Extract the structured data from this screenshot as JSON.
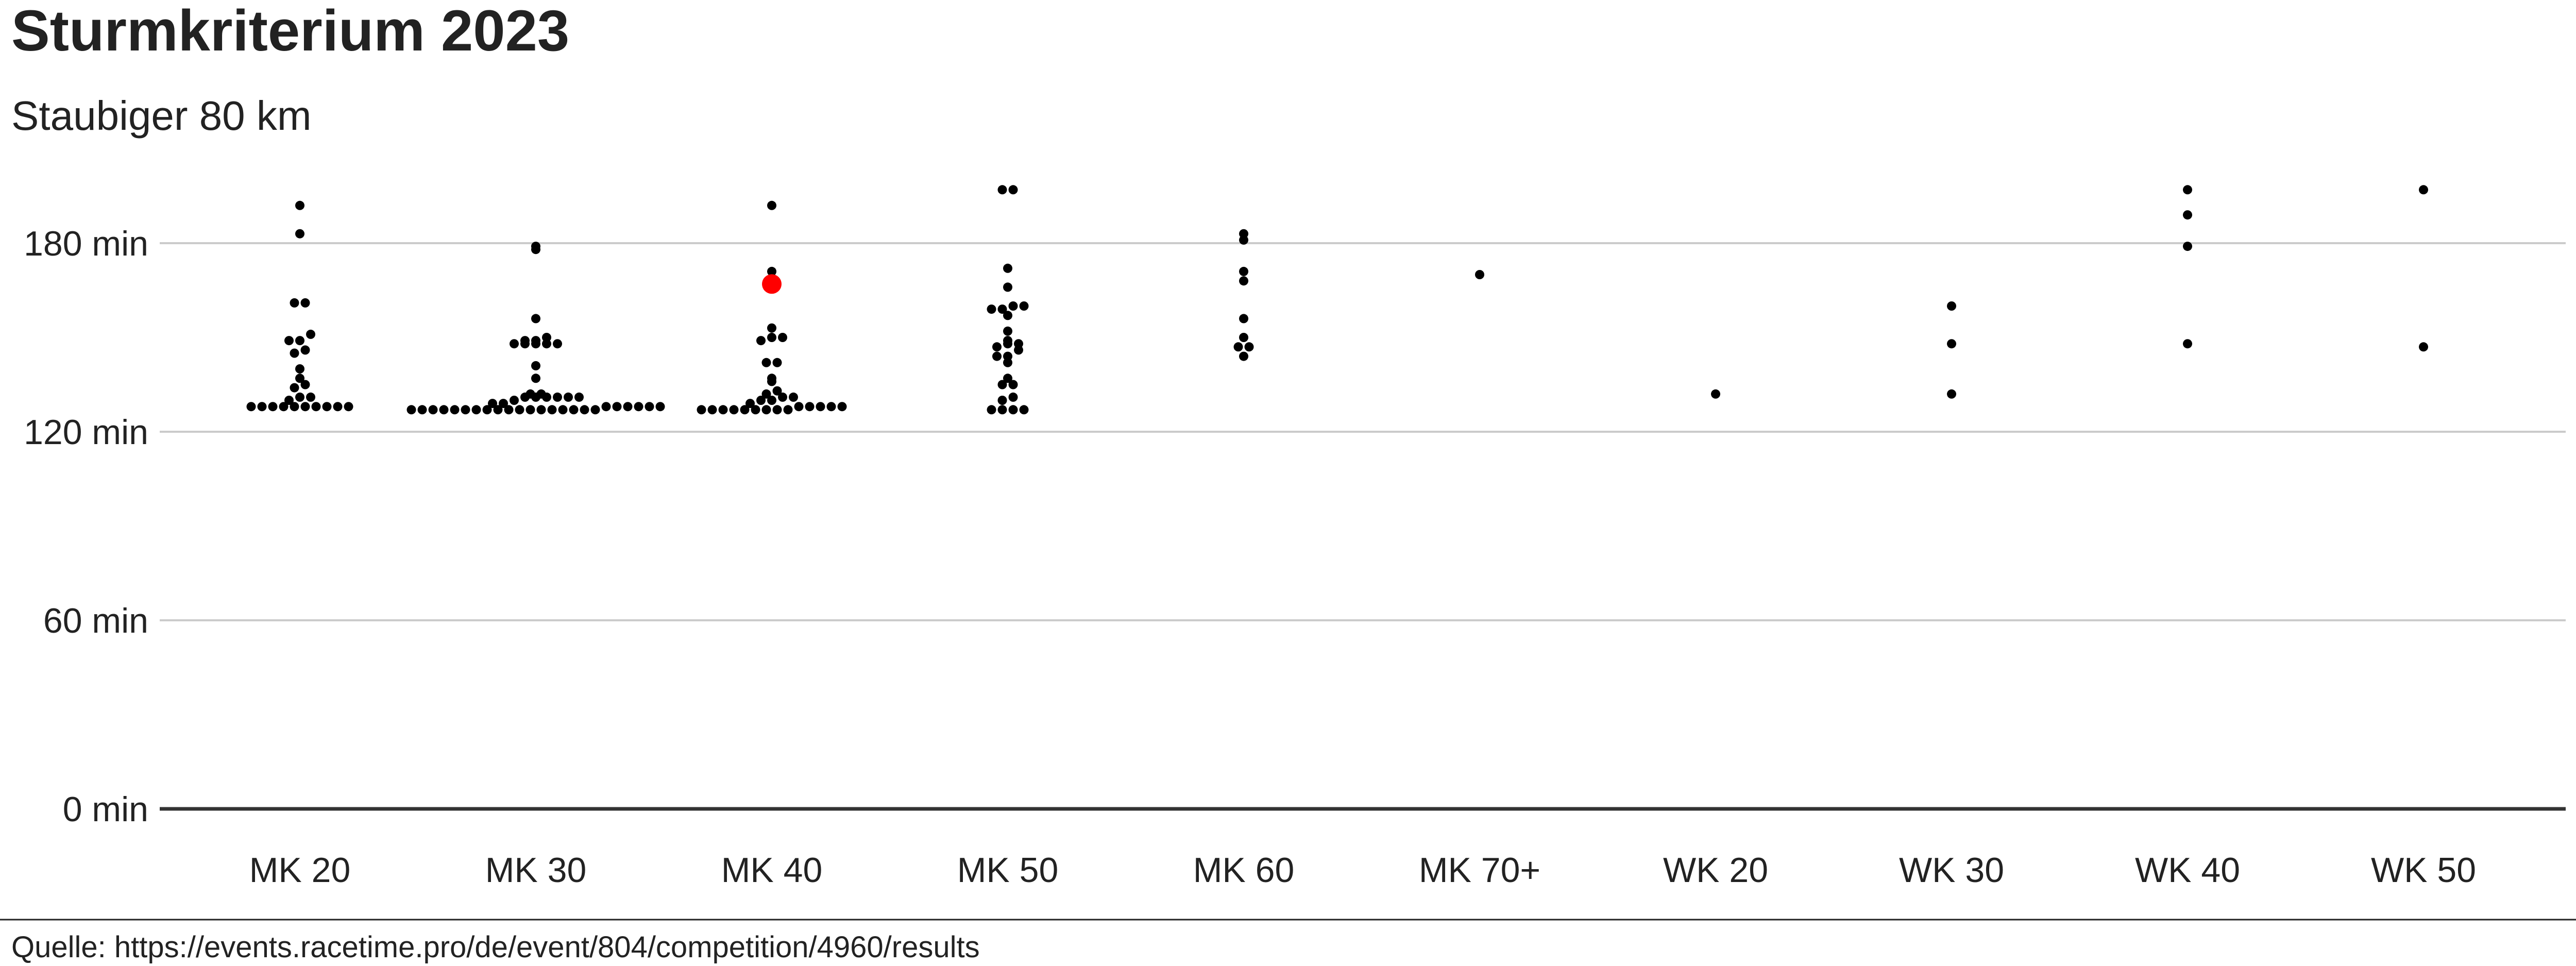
{
  "chart_data": {
    "type": "scatter",
    "title": "Sturmkriterium 2023",
    "subtitle": "Staubiger 80 km",
    "caption": "Quelle: https://events.racetime.pro/de/event/804/competition/4960/results",
    "categories": [
      "MK 20",
      "MK 30",
      "MK 40",
      "MK 50",
      "MK 60",
      "MK 70+",
      "WK 20",
      "WK 30",
      "WK 40",
      "WK 50"
    ],
    "y_axis": {
      "ylim": [
        0,
        205
      ],
      "ticks": [
        0,
        60,
        120,
        180
      ],
      "tick_labels": [
        "0 min",
        "60 min",
        "120 min",
        "180 min"
      ],
      "unit": "min"
    },
    "grid": true,
    "point_color": "#000000",
    "highlight_color": "#ff0000",
    "highlight": {
      "category": "MK 40",
      "value": 167
    },
    "series": [
      {
        "category": "MK 20",
        "values": [
          128,
          128,
          128,
          128,
          128,
          128,
          128,
          128,
          128,
          128,
          130,
          131,
          131,
          134,
          135,
          137,
          140,
          145,
          146,
          149,
          149,
          151,
          161,
          161,
          183,
          192
        ]
      },
      {
        "category": "MK 30",
        "values": [
          127,
          127,
          127,
          127,
          127,
          127,
          127,
          127,
          127,
          127,
          127,
          127,
          127,
          127,
          127,
          127,
          127,
          127,
          128,
          128,
          128,
          128,
          128,
          128,
          129,
          129,
          130,
          131,
          131,
          131,
          131,
          131,
          131,
          132,
          132,
          137,
          141,
          148,
          148,
          148,
          148,
          148,
          149,
          149,
          150,
          156,
          178,
          179
        ]
      },
      {
        "category": "MK 40",
        "values": [
          127,
          127,
          127,
          127,
          127,
          127,
          127,
          127,
          127,
          128,
          128,
          128,
          128,
          128,
          129,
          130,
          130,
          131,
          131,
          132,
          133,
          136,
          137,
          142,
          142,
          149,
          150,
          150,
          153,
          171,
          192
        ]
      },
      {
        "category": "MK 50",
        "values": [
          127,
          127,
          127,
          127,
          130,
          131,
          135,
          135,
          137,
          142,
          144,
          144,
          146,
          147,
          148,
          148,
          149,
          152,
          157,
          159,
          159,
          160,
          160,
          166,
          172,
          197,
          197
        ]
      },
      {
        "category": "MK 60",
        "values": [
          144,
          147,
          147,
          150,
          156,
          168,
          171,
          181,
          183
        ]
      },
      {
        "category": "MK 70+",
        "values": [
          170
        ]
      },
      {
        "category": "WK 20",
        "values": [
          132
        ]
      },
      {
        "category": "WK 30",
        "values": [
          132,
          148,
          160
        ]
      },
      {
        "category": "WK 40",
        "values": [
          148,
          179,
          189,
          197
        ]
      },
      {
        "category": "WK 50",
        "values": [
          147,
          197
        ]
      }
    ]
  }
}
